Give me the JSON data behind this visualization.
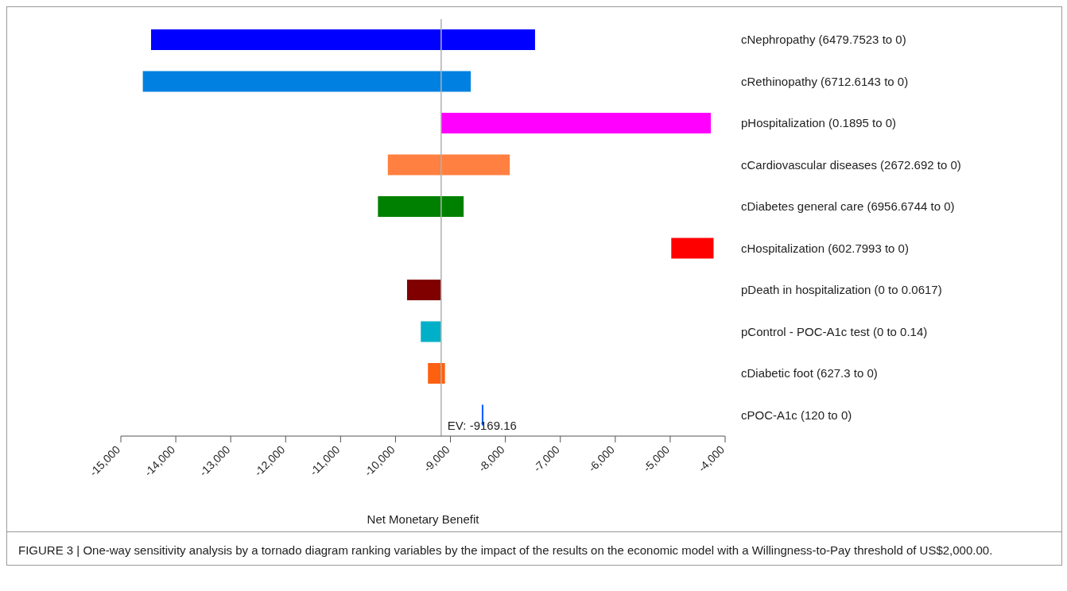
{
  "chart_data": {
    "type": "bar",
    "orientation": "horizontal",
    "xlabel": "Net Monetary Benefit",
    "categories": [
      "cNephropathy (6479.7523 to 0)",
      "cRethinopathy (6712.6143 to 0)",
      "pHospitalization (0.1895 to 0)",
      "cCardiovascular diseases (2672.692 to 0)",
      "cDiabetes general care (6956.6744 to 0)",
      "cHospitalization (602.7993 to 0)",
      "pDeath in hospitalization (0 to 0.0617)",
      "pControl - POC-A1c test (0 to 0.14)",
      "cDiabetic foot (627.3 to 0)",
      "cPOC-A1c (120 to 0)"
    ],
    "base": [
      -14450,
      -14600,
      -9170,
      -10140,
      -10320,
      -4980,
      -9790,
      -9540,
      -9410,
      -8430
    ],
    "values": [
      6990,
      5970,
      4910,
      2220,
      1560,
      770,
      620,
      370,
      310,
      30
    ],
    "colors": [
      "#0000ff",
      "#0080e0",
      "#ff00ff",
      "#ff8040",
      "#008000",
      "#ff0000",
      "#800000",
      "#00b0c8",
      "#ff6010",
      "#0060ff"
    ],
    "xlim": [
      -15000,
      -4000
    ],
    "xticks": [
      {
        "value": -15000,
        "label": "-15,000"
      },
      {
        "value": -14000,
        "label": "-14,000"
      },
      {
        "value": -13000,
        "label": "-13,000"
      },
      {
        "value": -12000,
        "label": "-12,000"
      },
      {
        "value": -11000,
        "label": "-11,000"
      },
      {
        "value": -10000,
        "label": "-10,000"
      },
      {
        "value": -9000,
        "label": "-9,000"
      },
      {
        "value": -8000,
        "label": "-8,000"
      },
      {
        "value": -7000,
        "label": "-7,000"
      },
      {
        "value": -6000,
        "label": "-6,000"
      },
      {
        "value": -5000,
        "label": "-5,000"
      },
      {
        "value": -4000,
        "label": "-4,000"
      }
    ],
    "ref_lines": [
      {
        "axis": "x",
        "value": -9169.16,
        "label": "EV: -9169.16",
        "color": "#b0b0b0"
      }
    ],
    "annotations": [
      "FIGURE 3 | One-way sensitivity analysis by a tornado diagram ranking variables by the impact of the results on the economic model with a Willingness-to-Pay threshold of US$2,000.00."
    ]
  }
}
